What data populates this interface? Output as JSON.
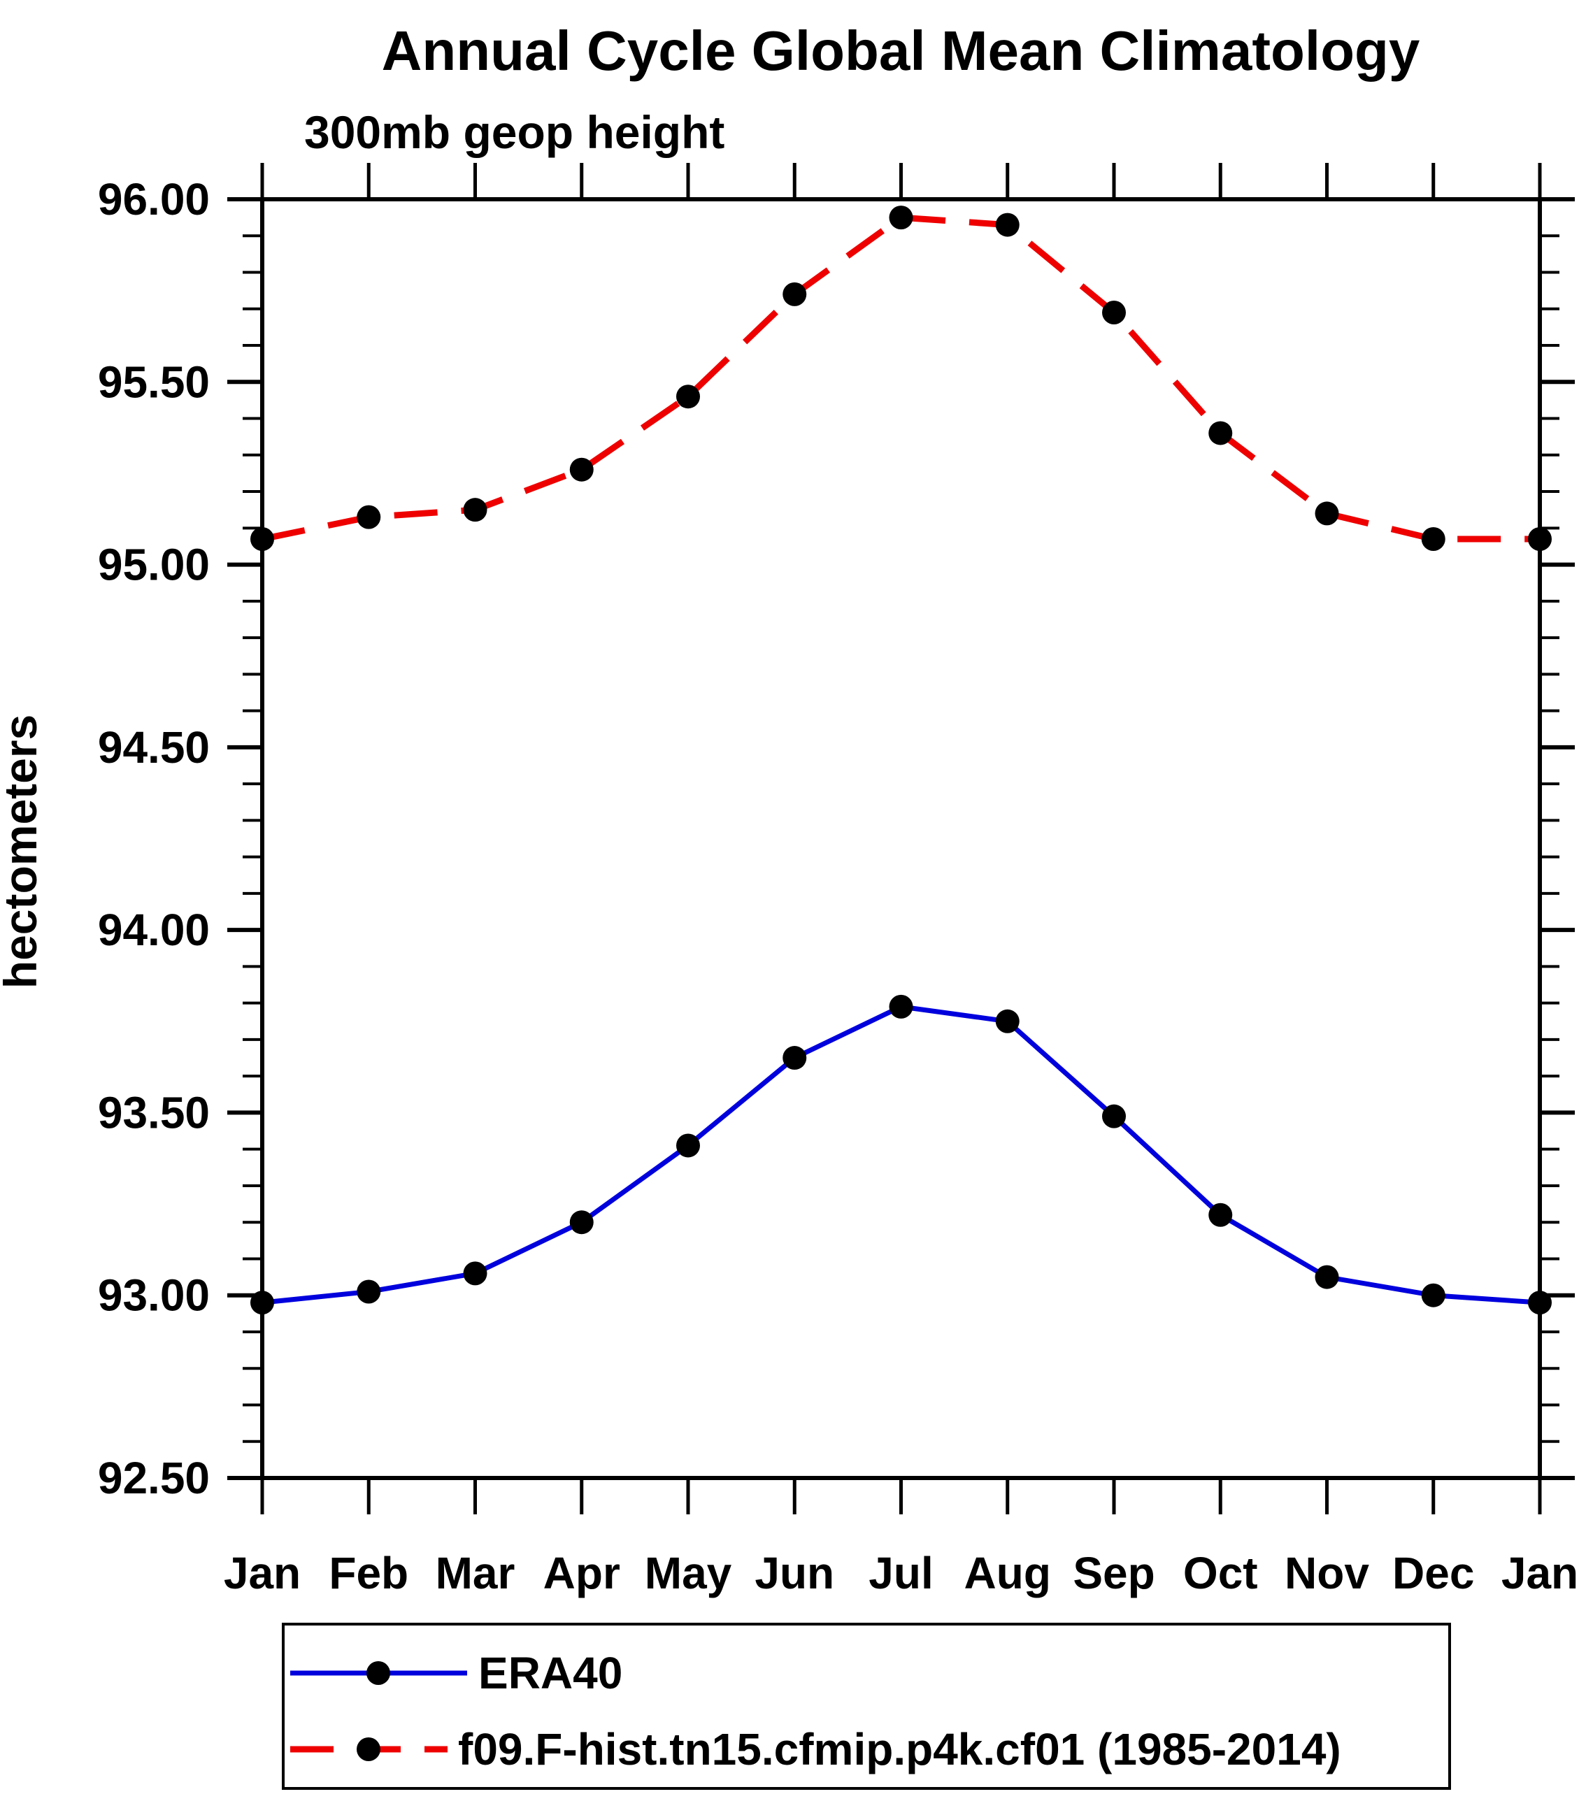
{
  "chart_data": {
    "type": "line",
    "title": "Annual Cycle Global Mean Climatology",
    "subtitle": "300mb geop height",
    "ylabel": "hectometers",
    "categories": [
      "Jan",
      "Feb",
      "Mar",
      "Apr",
      "May",
      "Jun",
      "Jul",
      "Aug",
      "Sep",
      "Oct",
      "Nov",
      "Dec",
      "Jan"
    ],
    "ylim": [
      92.5,
      96.0
    ],
    "ytick_major_step": 0.5,
    "ytick_minor_step": 0.1,
    "ytick_labels": [
      "96.00",
      "95.50",
      "95.00",
      "94.50",
      "94.00",
      "93.50",
      "93.00",
      "92.50"
    ],
    "grid": false,
    "legend_position": "bottom",
    "frame_color": "#000000",
    "series": [
      {
        "name": "ERA40",
        "line_color": "#0000dd",
        "line_style": "solid",
        "marker": "filled-circle",
        "marker_color": "#000000",
        "values": [
          92.98,
          93.01,
          93.06,
          93.2,
          93.41,
          93.65,
          93.79,
          93.75,
          93.49,
          93.22,
          93.05,
          93.0,
          92.98
        ]
      },
      {
        "name": "f09.F-hist.tn15.cfmip.p4k.cf01 (1985-2014)",
        "line_color": "#ee0000",
        "line_style": "dashed",
        "marker": "filled-circle",
        "marker_color": "#000000",
        "values": [
          95.07,
          95.13,
          95.15,
          95.26,
          95.46,
          95.74,
          95.95,
          95.93,
          95.69,
          95.36,
          95.14,
          95.07,
          95.07
        ]
      }
    ]
  }
}
